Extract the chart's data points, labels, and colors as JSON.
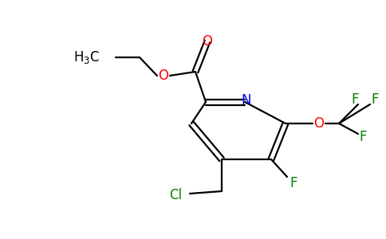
{
  "background_color": "#ffffff",
  "figsize": [
    4.84,
    3.0
  ],
  "dpi": 100,
  "bond_color": "#000000",
  "atom_colors": {
    "N": "#0000ff",
    "O": "#ff0000",
    "F": "#008000",
    "Cl": "#008000",
    "C": "#000000"
  }
}
